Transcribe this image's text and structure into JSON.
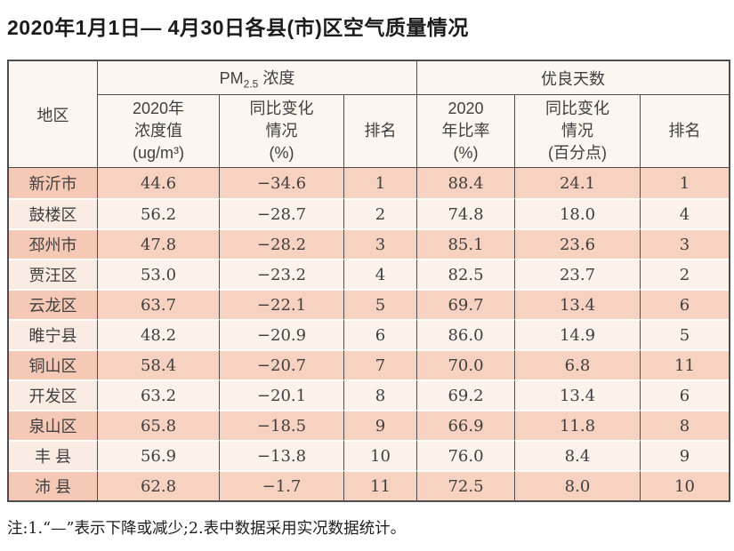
{
  "page": {
    "title": "2020年1月1日— 4月30日各县(市)区空气质量情况",
    "note": "注:1.“—”表示下降或减少;2.表中数据采用实况数据统计。"
  },
  "colors": {
    "row_odd": "#f8d2c0",
    "row_odd_region": "#f5c9b6",
    "row_even": "#fcf2ec",
    "row_even_region": "#faebe3",
    "header_bg": "#fdf5ef",
    "border": "#4d4d4d",
    "text": "#3f3f3f"
  },
  "table": {
    "header": {
      "region": "地区",
      "pm_group": {
        "base": "PM",
        "sub": "2.5",
        "rest": "浓度"
      },
      "good_group": "优良天数",
      "pm_value": "2020年\n浓度值\n(ug/m³)",
      "pm_change": "同比变化\n情况\n(%)",
      "pm_rank": "排名",
      "good_ratio": "2020\n年比率\n(%)",
      "good_change": "同比变化\n情况\n(百分点)",
      "good_rank": "排名"
    },
    "rows": [
      {
        "region": "新沂市",
        "pm_value": "44.6",
        "pm_change": "−34.6",
        "pm_rank": "1",
        "good_ratio": "88.4",
        "good_change": "24.1",
        "good_rank": "1"
      },
      {
        "region": "鼓楼区",
        "pm_value": "56.2",
        "pm_change": "−28.7",
        "pm_rank": "2",
        "good_ratio": "74.8",
        "good_change": "18.0",
        "good_rank": "4"
      },
      {
        "region": "邳州市",
        "pm_value": "47.8",
        "pm_change": "−28.2",
        "pm_rank": "3",
        "good_ratio": "85.1",
        "good_change": "23.6",
        "good_rank": "3"
      },
      {
        "region": "贾汪区",
        "pm_value": "53.0",
        "pm_change": "−23.2",
        "pm_rank": "4",
        "good_ratio": "82.5",
        "good_change": "23.7",
        "good_rank": "2"
      },
      {
        "region": "云龙区",
        "pm_value": "63.7",
        "pm_change": "−22.1",
        "pm_rank": "5",
        "good_ratio": "69.7",
        "good_change": "13.4",
        "good_rank": "6"
      },
      {
        "region": "睢宁县",
        "pm_value": "48.2",
        "pm_change": "−20.9",
        "pm_rank": "6",
        "good_ratio": "86.0",
        "good_change": "14.9",
        "good_rank": "5"
      },
      {
        "region": "铜山区",
        "pm_value": "58.4",
        "pm_change": "−20.7",
        "pm_rank": "7",
        "good_ratio": "70.0",
        "good_change": "6.8",
        "good_rank": "11"
      },
      {
        "region": "开发区",
        "pm_value": "63.2",
        "pm_change": "−20.1",
        "pm_rank": "8",
        "good_ratio": "69.2",
        "good_change": "13.4",
        "good_rank": "6"
      },
      {
        "region": "泉山区",
        "pm_value": "65.8",
        "pm_change": "−18.5",
        "pm_rank": "9",
        "good_ratio": "66.9",
        "good_change": "11.8",
        "good_rank": "8"
      },
      {
        "region": "丰 县",
        "pm_value": "56.9",
        "pm_change": "−13.8",
        "pm_rank": "10",
        "good_ratio": "76.0",
        "good_change": "8.4",
        "good_rank": "9"
      },
      {
        "region": "沛 县",
        "pm_value": "62.8",
        "pm_change": "−1.7",
        "pm_rank": "11",
        "good_ratio": "72.5",
        "good_change": "8.0",
        "good_rank": "10"
      }
    ]
  }
}
